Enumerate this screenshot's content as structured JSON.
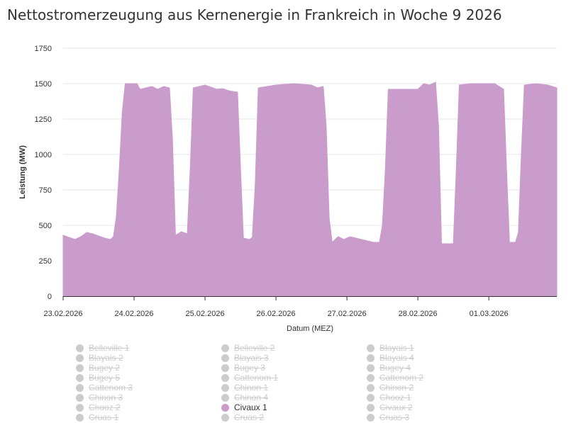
{
  "page": {
    "title": "Nettostromerzeugung aus Kernenergie in Frankreich in Woche 9 2026"
  },
  "chart_data": {
    "type": "area",
    "title": "Nettostromerzeugung aus Kernenergie in Frankreich in Woche 9 2026",
    "xlabel": "Datum (MEZ)",
    "ylabel": "Leistung (MW)",
    "ylim": [
      0,
      1750
    ],
    "yticks": [
      0,
      250,
      500,
      750,
      1000,
      1250,
      1500,
      1750
    ],
    "xlim": [
      "2026-02-23T00:00",
      "2026-03-01T23:00"
    ],
    "xticks": [
      {
        "x": "2026-02-23T00:00",
        "label": "23.02.2026"
      },
      {
        "x": "2026-02-24T00:00",
        "label": "24.02.2026"
      },
      {
        "x": "2026-02-25T00:00",
        "label": "25.02.2026"
      },
      {
        "x": "2026-02-26T00:00",
        "label": "26.02.2026"
      },
      {
        "x": "2026-02-27T00:00",
        "label": "27.02.2026"
      },
      {
        "x": "2026-02-28T00:00",
        "label": "28.02.2026"
      },
      {
        "x": "2026-03-01T00:00",
        "label": "01.03.2026"
      }
    ],
    "grid": true,
    "series": [
      {
        "name": "Civaux 1",
        "color": "#c99ccc",
        "points": [
          [
            "2026-02-23T00:00",
            430
          ],
          [
            "2026-02-23T02:00",
            415
          ],
          [
            "2026-02-23T04:00",
            400
          ],
          [
            "2026-02-23T06:00",
            420
          ],
          [
            "2026-02-23T08:00",
            450
          ],
          [
            "2026-02-23T10:00",
            440
          ],
          [
            "2026-02-23T12:00",
            425
          ],
          [
            "2026-02-23T14:00",
            410
          ],
          [
            "2026-02-23T16:00",
            400
          ],
          [
            "2026-02-23T17:00",
            420
          ],
          [
            "2026-02-23T18:00",
            560
          ],
          [
            "2026-02-23T19:00",
            900
          ],
          [
            "2026-02-23T20:00",
            1300
          ],
          [
            "2026-02-23T21:00",
            1500
          ],
          [
            "2026-02-24T01:00",
            1500
          ],
          [
            "2026-02-24T02:00",
            1460
          ],
          [
            "2026-02-24T04:00",
            1470
          ],
          [
            "2026-02-24T06:00",
            1480
          ],
          [
            "2026-02-24T08:00",
            1460
          ],
          [
            "2026-02-24T10:00",
            1480
          ],
          [
            "2026-02-24T12:00",
            1470
          ],
          [
            "2026-02-24T13:00",
            1100
          ],
          [
            "2026-02-24T14:00",
            430
          ],
          [
            "2026-02-24T16:00",
            455
          ],
          [
            "2026-02-24T18:00",
            440
          ],
          [
            "2026-02-24T19:00",
            900
          ],
          [
            "2026-02-24T20:00",
            1470
          ],
          [
            "2026-02-25T00:00",
            1490
          ],
          [
            "2026-02-25T04:00",
            1460
          ],
          [
            "2026-02-25T06:00",
            1465
          ],
          [
            "2026-02-25T08:00",
            1450
          ],
          [
            "2026-02-25T11:00",
            1440
          ],
          [
            "2026-02-25T12:00",
            900
          ],
          [
            "2026-02-25T13:00",
            410
          ],
          [
            "2026-02-25T15:00",
            400
          ],
          [
            "2026-02-25T16:00",
            415
          ],
          [
            "2026-02-25T17:00",
            800
          ],
          [
            "2026-02-25T18:00",
            1470
          ],
          [
            "2026-02-26T00:00",
            1490
          ],
          [
            "2026-02-26T06:00",
            1500
          ],
          [
            "2026-02-26T12:00",
            1490
          ],
          [
            "2026-02-26T14:00",
            1470
          ],
          [
            "2026-02-26T16:00",
            1480
          ],
          [
            "2026-02-26T17:00",
            1200
          ],
          [
            "2026-02-26T18:00",
            550
          ],
          [
            "2026-02-26T19:00",
            380
          ],
          [
            "2026-02-26T21:00",
            420
          ],
          [
            "2026-02-26T23:00",
            400
          ],
          [
            "2026-02-27T01:00",
            420
          ],
          [
            "2026-02-27T03:00",
            410
          ],
          [
            "2026-02-27T05:00",
            400
          ],
          [
            "2026-02-27T07:00",
            390
          ],
          [
            "2026-02-27T09:00",
            380
          ],
          [
            "2026-02-27T11:00",
            380
          ],
          [
            "2026-02-27T12:00",
            500
          ],
          [
            "2026-02-27T13:00",
            900
          ],
          [
            "2026-02-27T14:00",
            1460
          ],
          [
            "2026-02-27T18:00",
            1460
          ],
          [
            "2026-02-27T22:00",
            1460
          ],
          [
            "2026-02-28T00:00",
            1460
          ],
          [
            "2026-02-28T02:00",
            1500
          ],
          [
            "2026-02-28T04:00",
            1490
          ],
          [
            "2026-02-28T06:00",
            1510
          ],
          [
            "2026-02-28T07:00",
            1200
          ],
          [
            "2026-02-28T08:00",
            370
          ],
          [
            "2026-02-28T12:00",
            370
          ],
          [
            "2026-02-28T13:00",
            900
          ],
          [
            "2026-02-28T14:00",
            1490
          ],
          [
            "2026-02-28T18:00",
            1500
          ],
          [
            "2026-02-28T22:00",
            1500
          ],
          [
            "2026-03-01T02:00",
            1500
          ],
          [
            "2026-03-01T05:00",
            1460
          ],
          [
            "2026-03-01T06:00",
            900
          ],
          [
            "2026-03-01T07:00",
            380
          ],
          [
            "2026-03-01T09:00",
            380
          ],
          [
            "2026-03-01T10:00",
            450
          ],
          [
            "2026-03-01T11:00",
            1000
          ],
          [
            "2026-03-01T12:00",
            1490
          ],
          [
            "2026-03-01T16:00",
            1500
          ],
          [
            "2026-03-01T20:00",
            1490
          ],
          [
            "2026-03-01T23:00",
            1470
          ]
        ]
      }
    ]
  },
  "legend": {
    "placement": "bottom",
    "columns": [
      [
        "Belleville 1",
        "Blayais 2",
        "Bugey 2",
        "Bugey 5",
        "Cattenom 3",
        "Chinon 3",
        "Chooz 2",
        "Cruas 1"
      ],
      [
        "Belleville 2",
        "Blayais 3",
        "Bugey 3",
        "Cattenom 1",
        "Chinon 1",
        "Chinon 4",
        "Civaux 1",
        "Cruas 2"
      ],
      [
        "Blayais 1",
        "Blayais 4",
        "Bugey 4",
        "Cattenom 2",
        "Chinon 2",
        "Chooz 1",
        "Civaux 2",
        "Cruas 3"
      ]
    ],
    "active": [
      "Civaux 1"
    ],
    "inactive_color": "#cccccc"
  }
}
